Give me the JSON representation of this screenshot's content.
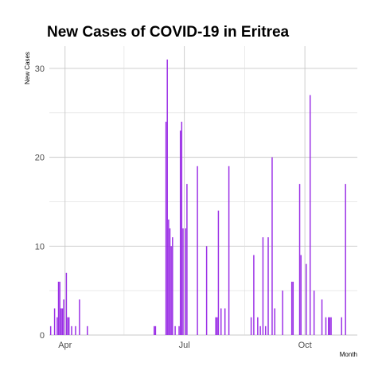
{
  "chart_data": {
    "type": "bar",
    "title": "New Cases of COVID-19 in Eritrea",
    "xlabel": "Month",
    "ylabel": "New Cases",
    "x_range": [
      "2020-03-20",
      "2020-11-10"
    ],
    "ylim": [
      0,
      32.5
    ],
    "y_ticks": [
      0,
      10,
      20,
      30
    ],
    "x_ticks": [
      {
        "date": "2020-04-01",
        "label": "Apr"
      },
      {
        "date": "2020-07-01",
        "label": "Jul"
      },
      {
        "date": "2020-10-01",
        "label": "Oct"
      }
    ],
    "x_minor_ticks": [
      "2020-05-16",
      "2020-08-16",
      "2020-11-16"
    ],
    "grid": true,
    "bar_color": "#9b30e6",
    "x": [
      "2020-03-21",
      "2020-03-24",
      "2020-03-26",
      "2020-03-27",
      "2020-03-28",
      "2020-03-29",
      "2020-03-30",
      "2020-03-31",
      "2020-04-02",
      "2020-04-03",
      "2020-04-04",
      "2020-04-06",
      "2020-04-09",
      "2020-04-12",
      "2020-04-18",
      "2020-06-08",
      "2020-06-09",
      "2020-06-17",
      "2020-06-18",
      "2020-06-19",
      "2020-06-20",
      "2020-06-21",
      "2020-06-22",
      "2020-06-24",
      "2020-06-27",
      "2020-06-28",
      "2020-06-29",
      "2020-06-30",
      "2020-07-02",
      "2020-07-03",
      "2020-07-11",
      "2020-07-18",
      "2020-07-25",
      "2020-07-26",
      "2020-07-27",
      "2020-07-29",
      "2020-08-01",
      "2020-08-04",
      "2020-08-21",
      "2020-08-23",
      "2020-08-26",
      "2020-08-28",
      "2020-08-30",
      "2020-09-01",
      "2020-09-03",
      "2020-09-06",
      "2020-09-08",
      "2020-09-14",
      "2020-09-21",
      "2020-09-22",
      "2020-09-27",
      "2020-09-28",
      "2020-10-02",
      "2020-10-05",
      "2020-10-08",
      "2020-10-14",
      "2020-10-17",
      "2020-10-19",
      "2020-10-20",
      "2020-10-21",
      "2020-10-29",
      "2020-11-01"
    ],
    "values": [
      1,
      3,
      2,
      6,
      6,
      3,
      3,
      4,
      7,
      2,
      2,
      1,
      1,
      4,
      1,
      1,
      1,
      24,
      31,
      13,
      12,
      10,
      11,
      1,
      1,
      23,
      24,
      12,
      12,
      17,
      19,
      10,
      2,
      2,
      14,
      3,
      3,
      19,
      2,
      9,
      2,
      1,
      11,
      1,
      11,
      20,
      3,
      5,
      6,
      6,
      17,
      9,
      8,
      27,
      5,
      4,
      2,
      2,
      2,
      2,
      2,
      17
    ]
  }
}
